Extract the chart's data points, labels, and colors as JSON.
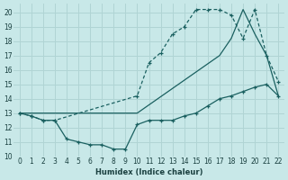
{
  "background_color": "#c8e8e8",
  "grid_color": "#b0d4d4",
  "line_color": "#1a6060",
  "xlabel": "Humidex (Indice chaleur)",
  "xlim": [
    -0.5,
    22.5
  ],
  "ylim": [
    10,
    20.6
  ],
  "yticks": [
    10,
    11,
    12,
    13,
    14,
    15,
    16,
    17,
    18,
    19,
    20
  ],
  "xticks": [
    0,
    1,
    2,
    3,
    4,
    5,
    6,
    7,
    8,
    9,
    10,
    11,
    12,
    13,
    14,
    15,
    16,
    17,
    18,
    19,
    20,
    21,
    22
  ],
  "line_bottom_x": [
    0,
    1,
    2,
    3,
    4,
    5,
    6,
    7,
    8,
    9,
    10,
    11,
    12,
    13,
    14,
    15,
    16,
    17,
    18,
    19,
    20,
    21,
    22
  ],
  "line_bottom_y": [
    13,
    12.8,
    12.5,
    12.5,
    11.2,
    11.0,
    10.8,
    10.8,
    10.5,
    10.5,
    12.2,
    12.5,
    12.5,
    12.5,
    12.8,
    13.0,
    13.5,
    14.0,
    14.2,
    14.5,
    14.8,
    15.0,
    14.2
  ],
  "line_top_x": [
    0,
    1,
    2,
    3,
    10,
    11,
    12,
    13,
    14,
    15,
    16,
    17,
    18,
    19,
    20,
    21,
    22
  ],
  "line_top_y": [
    13,
    12.8,
    12.5,
    12.5,
    14.2,
    16.5,
    17.2,
    18.5,
    19.0,
    20.2,
    20.2,
    20.2,
    19.8,
    18.2,
    20.2,
    17.0,
    15.2
  ],
  "line_diag_x": [
    0,
    3,
    10,
    17,
    18,
    19,
    20,
    21,
    22
  ],
  "line_diag_y": [
    13,
    13,
    13,
    17.0,
    18.2,
    20.2,
    18.5,
    17.0,
    14.2
  ]
}
